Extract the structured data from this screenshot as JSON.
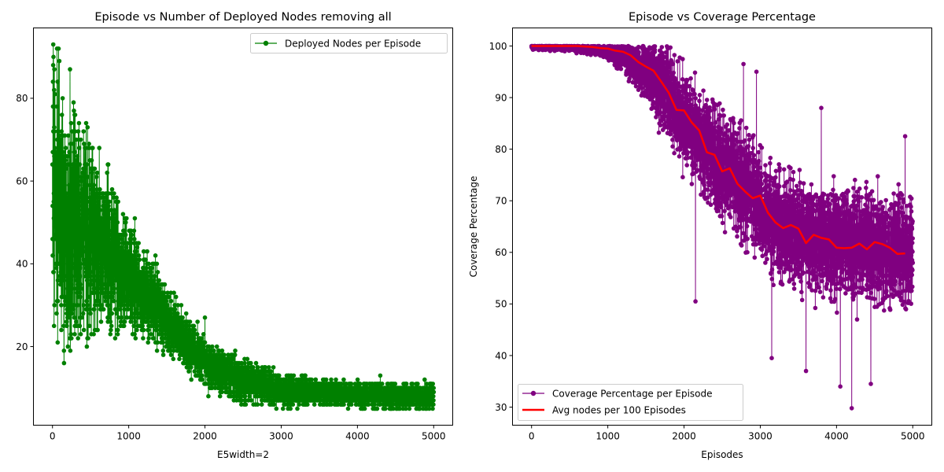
{
  "chart_data": [
    {
      "type": "line",
      "title": "Episode vs Number of Deployed Nodes removing all",
      "xlabel": "E5width=2",
      "ylabel": "",
      "xlim": [
        -250,
        5250
      ],
      "ylim": [
        1,
        97
      ],
      "x_ticks": [
        0,
        1000,
        2000,
        3000,
        4000,
        5000
      ],
      "y_ticks": [
        20,
        40,
        60,
        80
      ],
      "x_tick_labels": [
        "0",
        "1000",
        "2000",
        "3000",
        "4000",
        "5000"
      ],
      "y_tick_labels": [
        "20",
        "40",
        "60",
        "80"
      ],
      "grid": false,
      "legend_position": "top-right",
      "series": [
        {
          "name": "Deployed Nodes per Episode",
          "color": "#008000",
          "marker": "circle",
          "trend": {
            "x": [
              0,
              100,
              200,
              300,
              400,
              500,
              600,
              700,
              800,
              900,
              1000,
              1100,
              1200,
              1300,
              1400,
              1500,
              1600,
              1700,
              1800,
              1900,
              2000,
              2200,
              2400,
              2600,
              2800,
              3000,
              3500,
              4000,
              4500,
              5000
            ],
            "y": [
              58,
              52,
              50,
              48,
              47,
              46,
              44,
              43,
              41,
              39,
              37,
              35,
              33,
              31,
              29,
              26,
              24,
              22,
              20,
              18,
              16,
              14,
              12.5,
              11.5,
              10.5,
              9.5,
              9,
              8.5,
              8,
              8
            ]
          },
          "spread": {
            "x": [
              0,
              200,
              500,
              800,
              1000,
              1200,
              1500,
              1800,
              2000,
              2500,
              3000,
              3500,
              4000,
              5000
            ],
            "y": [
              35,
              30,
              25,
              18,
              14,
              11,
              8,
              7,
              6,
              5,
              4,
              3,
              3,
              3
            ]
          },
          "notable_points": [
            {
              "x": 10,
              "y": 93
            },
            {
              "x": 60,
              "y": 92
            },
            {
              "x": 90,
              "y": 89
            },
            {
              "x": 230,
              "y": 87
            },
            {
              "x": 20,
              "y": 25
            },
            {
              "x": 150,
              "y": 19
            },
            {
              "x": 1080,
              "y": 51
            },
            {
              "x": 1350,
              "y": 42
            },
            {
              "x": 2000,
              "y": 27
            },
            {
              "x": 4300,
              "y": 13
            }
          ]
        }
      ]
    },
    {
      "type": "line",
      "title": "Episode vs Coverage Percentage",
      "xlabel": "Episodes",
      "ylabel": "Coverage Percentage",
      "xlim": [
        -250,
        5250
      ],
      "ylim": [
        26.5,
        103.5
      ],
      "x_ticks": [
        0,
        1000,
        2000,
        3000,
        4000,
        5000
      ],
      "y_ticks": [
        30,
        40,
        50,
        60,
        70,
        80,
        90,
        100
      ],
      "x_tick_labels": [
        "0",
        "1000",
        "2000",
        "3000",
        "4000",
        "5000"
      ],
      "y_tick_labels": [
        "30",
        "40",
        "50",
        "60",
        "70",
        "80",
        "90",
        "100"
      ],
      "grid": false,
      "legend_position": "bottom-left",
      "series": [
        {
          "name": "Coverage Percentage per Episode",
          "color": "#800080",
          "marker": "circle",
          "trend": {
            "x": [
              0,
              400,
              800,
              1000,
              1200,
              1400,
              1600,
              1800,
              2000,
              2200,
              2400,
              2600,
              2800,
              3000,
              3200,
              3400,
              3600,
              3800,
              4000,
              4200,
              4400,
              4600,
              4800,
              5000
            ],
            "y": [
              99.8,
              99.8,
              99.4,
              99,
              98,
              96,
              94,
              90,
              86,
              82,
              78,
              75,
              72,
              69,
              66,
              64,
              63,
              62.5,
              62,
              61.5,
              61,
              61,
              60.5,
              60
            ]
          },
          "spread": {
            "x": [
              0,
              800,
              1000,
              1200,
              1400,
              1600,
              1800,
              2000,
              2500,
              3000,
              3500,
              4000,
              5000
            ],
            "y": [
              0.5,
              1,
              1.5,
              3,
              5,
              7,
              9,
              10,
              11,
              11,
              11,
              11,
              11
            ]
          },
          "notable_points": [
            {
              "x": 2150,
              "y": 50.5
            },
            {
              "x": 3150,
              "y": 39.5
            },
            {
              "x": 3600,
              "y": 37
            },
            {
              "x": 4050,
              "y": 34
            },
            {
              "x": 4200,
              "y": 29.8
            },
            {
              "x": 4450,
              "y": 34.5
            },
            {
              "x": 2780,
              "y": 96.5
            },
            {
              "x": 2950,
              "y": 95
            },
            {
              "x": 3800,
              "y": 88
            },
            {
              "x": 4900,
              "y": 82.5
            }
          ]
        },
        {
          "name": "Avg nodes per 100 Episodes",
          "color": "#ff0000",
          "marker": "none",
          "x": [
            0,
            100,
            200,
            300,
            400,
            500,
            600,
            700,
            800,
            900,
            1000,
            1100,
            1200,
            1300,
            1400,
            1500,
            1600,
            1700,
            1800,
            1900,
            2000,
            2100,
            2200,
            2300,
            2400,
            2500,
            2600,
            2700,
            2800,
            2900,
            3000,
            3100,
            3200,
            3300,
            3400,
            3500,
            3600,
            3700,
            3800,
            3900,
            4000,
            4100,
            4200,
            4300,
            4400,
            4500,
            4600,
            4700,
            4800,
            4900
          ],
          "y": [
            100.0,
            100.0,
            100.0,
            100.0,
            100.0,
            100.0,
            100.0,
            99.9,
            99.8,
            99.6,
            99.5,
            99.1,
            98.9,
            98.2,
            96.9,
            96.0,
            95.2,
            93.1,
            90.9,
            87.6,
            87.5,
            85.2,
            83.6,
            79.4,
            78.9,
            75.7,
            76.3,
            73.3,
            71.8,
            70.5,
            71.0,
            67.7,
            65.8,
            64.7,
            65.3,
            64.6,
            61.8,
            63.4,
            62.8,
            62.5,
            60.9,
            60.8,
            60.9,
            61.7,
            60.6,
            62.0,
            61.6,
            60.9,
            59.7,
            59.8
          ]
        }
      ]
    }
  ]
}
